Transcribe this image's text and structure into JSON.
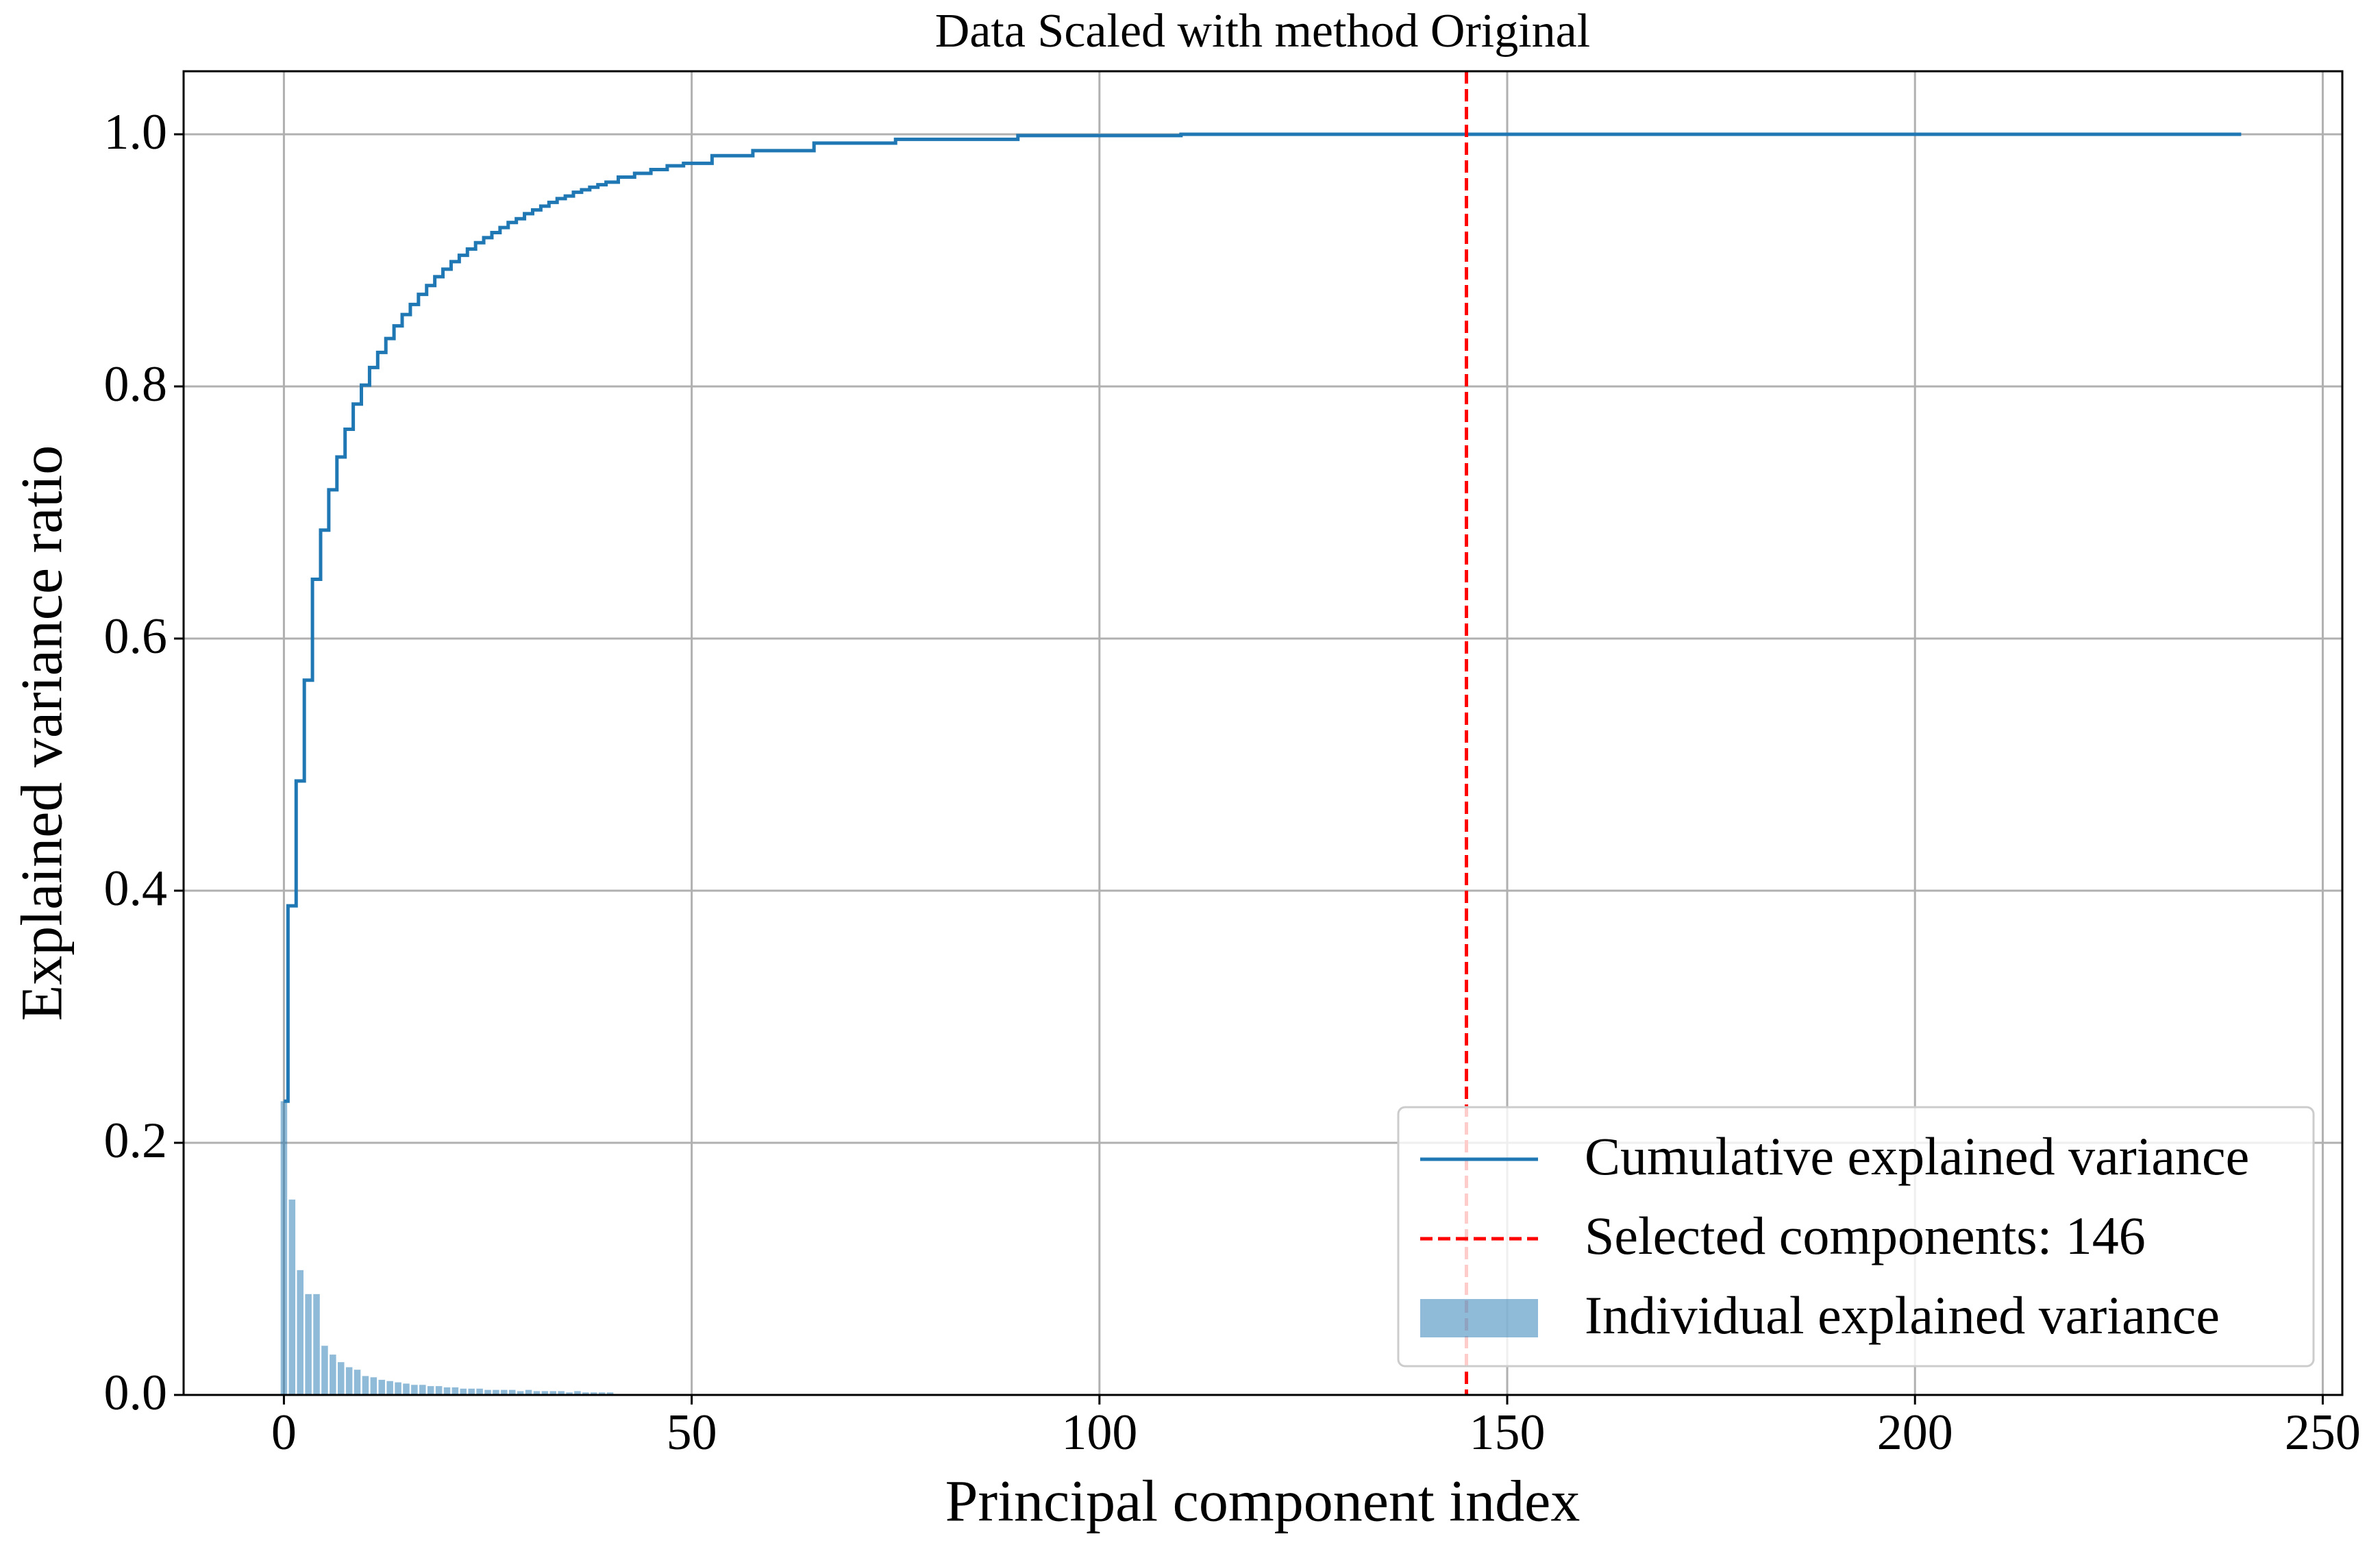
{
  "chart_data": {
    "type": "line",
    "title": "Data Scaled with method Original",
    "x_label": "Principal component index",
    "y_label": "Explained variance ratio",
    "xlim": [
      -12.3,
      252.4
    ],
    "ylim": [
      0,
      1.05
    ],
    "xticks": [
      0,
      50,
      100,
      150,
      200,
      250
    ],
    "yticks": [
      {
        "value": 0,
        "label": "0.0"
      },
      0.2,
      0.4,
      0.6,
      0.8,
      {
        "value": 1,
        "label": "1.0"
      }
    ],
    "grid": true,
    "legend": "lower right",
    "series": [
      {
        "name": "Cumulative explained variance",
        "type": "step",
        "color": "#1f77b4",
        "x": [
          0,
          1,
          2,
          3,
          4,
          5,
          6,
          7,
          8,
          9,
          10,
          11,
          12,
          13,
          14,
          15,
          16,
          17,
          18,
          19,
          20,
          21,
          22,
          23,
          24,
          25,
          26,
          27,
          28,
          29,
          30,
          31,
          32,
          33,
          34,
          35,
          36,
          37,
          38,
          39,
          40,
          42,
          44,
          46,
          48,
          50,
          55,
          60,
          70,
          80,
          100,
          120,
          240
        ],
        "values": [
          0.233,
          0.388,
          0.487,
          0.567,
          0.647,
          0.686,
          0.718,
          0.744,
          0.766,
          0.786,
          0.801,
          0.815,
          0.827,
          0.838,
          0.848,
          0.857,
          0.865,
          0.873,
          0.88,
          0.887,
          0.893,
          0.899,
          0.904,
          0.909,
          0.914,
          0.918,
          0.922,
          0.926,
          0.93,
          0.933,
          0.937,
          0.94,
          0.943,
          0.946,
          0.949,
          0.951,
          0.954,
          0.956,
          0.958,
          0.96,
          0.962,
          0.966,
          0.969,
          0.972,
          0.975,
          0.977,
          0.983,
          0.987,
          0.993,
          0.996,
          0.999,
          1.0,
          1.0
        ]
      },
      {
        "name": "Selected components: 146",
        "type": "vline",
        "color": "#ff0000",
        "x": [
          145
        ]
      },
      {
        "name": "Individual explained variance",
        "type": "bar",
        "color": "#1f77b4",
        "x": [
          0,
          1,
          2,
          3,
          4,
          5,
          6,
          7,
          8,
          9,
          10,
          11,
          12,
          13,
          14,
          15,
          16,
          17,
          18,
          19,
          20,
          21,
          22,
          23,
          24,
          25,
          26,
          27,
          28,
          29,
          30,
          31,
          32,
          33,
          34,
          35,
          36,
          37,
          38,
          39,
          40
        ],
        "values": [
          0.233,
          0.155,
          0.099,
          0.08,
          0.08,
          0.039,
          0.032,
          0.026,
          0.022,
          0.02,
          0.015,
          0.014,
          0.012,
          0.011,
          0.01,
          0.009,
          0.008,
          0.008,
          0.007,
          0.007,
          0.006,
          0.006,
          0.005,
          0.005,
          0.005,
          0.004,
          0.004,
          0.004,
          0.004,
          0.003,
          0.004,
          0.003,
          0.003,
          0.003,
          0.003,
          0.002,
          0.003,
          0.002,
          0.002,
          0.002,
          0.002
        ]
      }
    ]
  }
}
